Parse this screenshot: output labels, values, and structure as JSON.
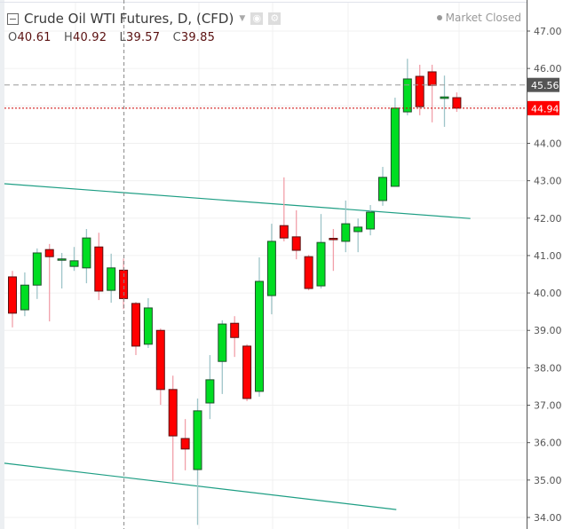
{
  "header": {
    "title": "Crude Oil WTI Futures, D, (CFD)",
    "ohlc": {
      "O": "40.61",
      "H": "40.92",
      "L": "39.57",
      "C": "39.85"
    },
    "status": "Market Closed"
  },
  "chart_data": {
    "type": "candlestick",
    "title": "Crude Oil WTI Futures, D, (CFD)",
    "ylim": [
      34.0,
      47.0
    ],
    "y_ticks": [
      "47.00",
      "46.00",
      "45.00",
      "44.00",
      "43.00",
      "42.00",
      "41.00",
      "40.00",
      "39.00",
      "38.00",
      "37.00",
      "36.00",
      "35.00",
      "34.00"
    ],
    "grid": true,
    "last_price": "44.94",
    "crosshair": {
      "bar": 10,
      "price": "45.56"
    },
    "colors": {
      "up": "#00dd22",
      "down": "#ff0000",
      "up_wick": "#9fc5c9",
      "down_wick": "#f2a0aa",
      "trendline": "#1e9e84",
      "last_price": "#ff0000",
      "crosshair_label": "#555555"
    },
    "candles": [
      {
        "o": 40.43,
        "h": 40.59,
        "l": 39.08,
        "c": 39.46
      },
      {
        "o": 39.55,
        "h": 40.55,
        "l": 39.38,
        "c": 40.21
      },
      {
        "o": 40.21,
        "h": 41.19,
        "l": 39.84,
        "c": 41.07
      },
      {
        "o": 41.16,
        "h": 41.31,
        "l": 39.24,
        "c": 40.97
      },
      {
        "o": 40.89,
        "h": 41.07,
        "l": 40.12,
        "c": 40.91
      },
      {
        "o": 40.71,
        "h": 41.23,
        "l": 40.59,
        "c": 40.86
      },
      {
        "o": 40.67,
        "h": 41.71,
        "l": 40.26,
        "c": 41.47
      },
      {
        "o": 41.23,
        "h": 41.61,
        "l": 39.81,
        "c": 40.05
      },
      {
        "o": 40.07,
        "h": 41.05,
        "l": 39.74,
        "c": 40.67
      },
      {
        "o": 40.61,
        "h": 40.92,
        "l": 39.57,
        "c": 39.85
      },
      {
        "o": 39.72,
        "h": 39.76,
        "l": 38.34,
        "c": 38.58
      },
      {
        "o": 38.63,
        "h": 39.86,
        "l": 38.53,
        "c": 39.6
      },
      {
        "o": 39.0,
        "h": 39.05,
        "l": 37.01,
        "c": 37.42
      },
      {
        "o": 37.42,
        "h": 37.79,
        "l": 34.97,
        "c": 36.18
      },
      {
        "o": 36.11,
        "h": 36.63,
        "l": 35.26,
        "c": 35.83
      },
      {
        "o": 35.28,
        "h": 37.18,
        "l": 33.8,
        "c": 36.85
      },
      {
        "o": 37.06,
        "h": 38.34,
        "l": 36.63,
        "c": 37.68
      },
      {
        "o": 38.17,
        "h": 39.27,
        "l": 37.3,
        "c": 39.17
      },
      {
        "o": 39.19,
        "h": 39.38,
        "l": 38.29,
        "c": 38.81
      },
      {
        "o": 38.58,
        "h": 38.63,
        "l": 37.11,
        "c": 37.18
      },
      {
        "o": 37.37,
        "h": 40.95,
        "l": 37.23,
        "c": 40.31
      },
      {
        "o": 39.93,
        "h": 41.85,
        "l": 39.43,
        "c": 41.38
      },
      {
        "o": 41.8,
        "h": 43.09,
        "l": 41.38,
        "c": 41.47
      },
      {
        "o": 41.5,
        "h": 42.21,
        "l": 40.9,
        "c": 41.14
      },
      {
        "o": 40.97,
        "h": 41.02,
        "l": 40.07,
        "c": 40.12
      },
      {
        "o": 40.19,
        "h": 42.11,
        "l": 40.12,
        "c": 41.35
      },
      {
        "o": 41.46,
        "h": 41.71,
        "l": 40.59,
        "c": 41.44
      },
      {
        "o": 41.38,
        "h": 42.47,
        "l": 41.09,
        "c": 41.85
      },
      {
        "o": 41.64,
        "h": 41.99,
        "l": 41.09,
        "c": 41.76
      },
      {
        "o": 41.71,
        "h": 42.35,
        "l": 41.54,
        "c": 42.16
      },
      {
        "o": 42.47,
        "h": 43.37,
        "l": 42.33,
        "c": 43.09
      },
      {
        "o": 42.85,
        "h": 45.22,
        "l": 42.85,
        "c": 44.94
      },
      {
        "o": 44.84,
        "h": 46.26,
        "l": 44.75,
        "c": 45.72
      },
      {
        "o": 45.79,
        "h": 46.1,
        "l": 44.75,
        "c": 44.98
      },
      {
        "o": 45.91,
        "h": 46.1,
        "l": 44.56,
        "c": 45.55
      },
      {
        "o": 45.2,
        "h": 45.81,
        "l": 44.44,
        "c": 45.24
      },
      {
        "o": 45.22,
        "h": 45.36,
        "l": 44.84,
        "c": 44.94
      }
    ],
    "trendlines": [
      {
        "from": {
          "bar": -0.65,
          "price": 42.92
        },
        "to": {
          "bar": 37.1,
          "price": 41.99
        }
      },
      {
        "from": {
          "bar": -0.65,
          "price": 35.45
        },
        "to": {
          "bar": 31.1,
          "price": 34.21
        }
      }
    ]
  }
}
